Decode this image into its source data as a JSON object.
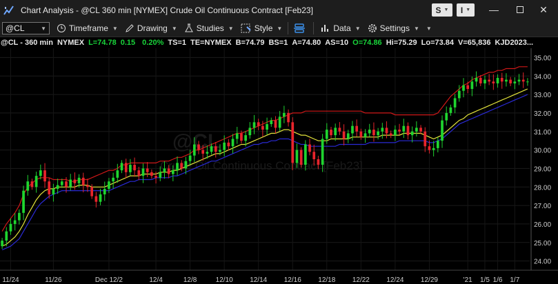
{
  "window": {
    "title": "Chart Analysis - @CL 360 min [NYMEX] Crude Oil Continuous Contract [Feb23]",
    "btn_s": "S",
    "btn_i": "I"
  },
  "toolbar": {
    "symbol": "@CL",
    "timeframe": "Timeframe",
    "drawing": "Drawing",
    "studies": "Studies",
    "style": "Style",
    "data": "Data",
    "settings": "Settings"
  },
  "quote": {
    "symbol": "@CL - 360 min",
    "exchange": "NYMEX",
    "last": "L=74.78",
    "change": "0.15",
    "change_pct": "0.20%",
    "ts": "TS=1",
    "te": "TE=NYMEX",
    "bid": "B=74.79",
    "bid_size": "BS=1",
    "ask": "A=74.80",
    "ask_size": "AS=10",
    "open": "O=74.86",
    "high": "Hi=75.29",
    "low": "Lo=73.84",
    "volume": "V=65,836",
    "extra": "KJD2023..."
  },
  "watermark": {
    "symbol": "@CL",
    "name": "Crude Oil Continuous Contract [Feb23]"
  },
  "colors": {
    "up": "#1fd52f",
    "down": "#e8242b",
    "upper_band": "#d01818",
    "middle_line": "#e6e63c",
    "lower_band": "#2a2ad6"
  },
  "chart_data": {
    "type": "candlestick",
    "ylim": [
      23.5,
      35.5
    ],
    "y_ticks": [
      "35.00",
      "34.00",
      "33.00",
      "32.00",
      "31.00",
      "30.00",
      "29.00",
      "28.00",
      "27.00",
      "26.00",
      "25.00",
      "24.00"
    ],
    "x_labels": [
      "11/24",
      "11/26",
      "Dec 12/2",
      "12/4",
      "12/8",
      "12/10",
      "12/14",
      "12/16",
      "12/18",
      "12/22",
      "12/24",
      "12/29",
      "'21",
      "1/5",
      "1/6",
      "1/7"
    ],
    "x_label_index": [
      2,
      12,
      25,
      36,
      44,
      52,
      60,
      68,
      76,
      84,
      92,
      100,
      109,
      113,
      116,
      120
    ],
    "bar_count": 124,
    "closes": [
      25.1,
      25.6,
      26.0,
      26.2,
      26.6,
      27.8,
      28.3,
      28.0,
      28.6,
      28.9,
      28.3,
      27.6,
      27.9,
      28.1,
      28.3,
      28.0,
      28.4,
      28.2,
      28.5,
      28.1,
      28.0,
      27.5,
      27.2,
      27.6,
      27.9,
      28.3,
      28.5,
      28.9,
      29.3,
      28.8,
      29.2,
      28.9,
      28.6,
      29.0,
      28.8,
      28.6,
      28.5,
      28.8,
      29.0,
      28.7,
      28.9,
      29.3,
      29.0,
      29.4,
      29.7,
      30.3,
      30.0,
      29.8,
      29.9,
      30.2,
      29.9,
      30.0,
      30.4,
      30.2,
      30.6,
      30.9,
      30.5,
      30.8,
      31.2,
      31.5,
      31.3,
      31.1,
      31.4,
      31.6,
      31.2,
      31.8,
      32.0,
      31.5,
      29.3,
      30.0,
      29.2,
      30.3,
      29.9,
      29.5,
      29.2,
      30.6,
      31.1,
      30.8,
      31.2,
      31.0,
      30.6,
      30.9,
      31.3,
      31.0,
      30.7,
      30.9,
      31.1,
      30.8,
      31.0,
      31.2,
      30.9,
      30.8,
      31.1,
      31.0,
      31.3,
      30.8,
      31.0,
      31.2,
      31.0,
      30.2,
      30.0,
      30.1,
      30.5,
      31.6,
      32.0,
      32.3,
      32.8,
      33.2,
      33.5,
      33.3,
      33.7,
      33.9,
      33.6,
      33.8,
      33.7,
      33.6,
      33.9,
      33.7,
      33.8,
      33.6,
      33.7,
      33.8,
      33.7,
      33.7
    ],
    "upper_band": [
      25.6,
      26.0,
      26.3,
      26.6,
      27.0,
      27.6,
      28.0,
      28.2,
      28.4,
      28.5,
      28.5,
      28.5,
      28.4,
      28.4,
      28.4,
      28.4,
      28.3,
      28.3,
      28.4,
      28.4,
      28.4,
      28.5,
      28.6,
      28.7,
      28.8,
      28.9,
      28.9,
      29.0,
      29.2,
      29.2,
      29.3,
      29.3,
      29.3,
      29.3,
      29.3,
      29.3,
      29.3,
      29.4,
      29.4,
      29.4,
      29.5,
      29.6,
      29.6,
      29.7,
      29.8,
      30.0,
      30.0,
      30.1,
      30.2,
      30.3,
      30.4,
      30.5,
      30.6,
      30.7,
      30.8,
      30.9,
      30.9,
      31.0,
      31.1,
      31.2,
      31.3,
      31.4,
      31.5,
      31.6,
      31.6,
      31.7,
      31.8,
      31.9,
      32.0,
      32.0,
      32.0,
      32.1,
      32.1,
      32.1,
      32.1,
      32.1,
      32.1,
      32.1,
      32.1,
      32.1,
      32.1,
      32.1,
      32.1,
      32.1,
      32.1,
      32.0,
      32.0,
      32.0,
      32.0,
      32.0,
      32.0,
      32.0,
      31.9,
      31.9,
      31.9,
      31.9,
      31.9,
      31.9,
      31.9,
      31.9,
      31.9,
      31.9,
      32.0,
      32.3,
      32.6,
      32.9,
      33.1,
      33.3,
      33.5,
      33.6,
      33.8,
      33.9,
      34.0,
      34.1,
      34.2,
      34.2,
      34.3,
      34.3,
      34.4,
      34.4,
      34.4,
      34.5,
      34.5,
      34.5
    ],
    "middle_line": [
      24.8,
      24.9,
      25.1,
      25.3,
      25.6,
      26.0,
      26.5,
      26.9,
      27.3,
      27.6,
      27.8,
      27.9,
      27.9,
      28.0,
      28.0,
      28.0,
      28.0,
      28.0,
      28.1,
      28.1,
      28.1,
      28.0,
      28.0,
      28.0,
      28.0,
      28.1,
      28.2,
      28.3,
      28.4,
      28.5,
      28.6,
      28.6,
      28.6,
      28.7,
      28.7,
      28.7,
      28.7,
      28.8,
      28.8,
      28.8,
      28.9,
      28.9,
      29.0,
      29.1,
      29.2,
      29.3,
      29.4,
      29.5,
      29.6,
      29.7,
      29.8,
      29.8,
      29.9,
      30.0,
      30.1,
      30.2,
      30.3,
      30.3,
      30.4,
      30.5,
      30.6,
      30.7,
      30.8,
      30.9,
      30.9,
      31.0,
      31.1,
      31.1,
      31.0,
      30.9,
      30.8,
      30.8,
      30.7,
      30.6,
      30.5,
      30.5,
      30.5,
      30.6,
      30.6,
      30.6,
      30.6,
      30.6,
      30.7,
      30.7,
      30.7,
      30.7,
      30.7,
      30.7,
      30.7,
      30.8,
      30.8,
      30.8,
      30.8,
      30.8,
      30.9,
      30.9,
      30.9,
      30.9,
      30.9,
      30.8,
      30.7,
      30.6,
      30.7,
      30.8,
      31.0,
      31.2,
      31.4,
      31.6,
      31.7,
      31.9,
      32.0,
      32.1,
      32.2,
      32.3,
      32.4,
      32.5,
      32.6,
      32.7,
      32.8,
      32.9,
      33.0,
      33.1,
      33.2,
      33.3
    ],
    "lower_band": [
      24.6,
      24.7,
      24.8,
      25.0,
      25.2,
      25.6,
      26.0,
      26.4,
      26.8,
      27.1,
      27.3,
      27.5,
      27.6,
      27.7,
      27.8,
      27.8,
      27.8,
      27.8,
      27.8,
      27.8,
      27.8,
      27.8,
      27.8,
      27.8,
      27.8,
      27.8,
      27.9,
      28.0,
      28.1,
      28.2,
      28.3,
      28.3,
      28.4,
      28.4,
      28.4,
      28.4,
      28.5,
      28.5,
      28.5,
      28.5,
      28.6,
      28.6,
      28.7,
      28.8,
      28.9,
      29.0,
      29.1,
      29.2,
      29.3,
      29.4,
      29.4,
      29.5,
      29.6,
      29.7,
      29.8,
      29.9,
      30.0,
      30.1,
      30.2,
      30.3,
      30.3,
      30.4,
      30.4,
      30.5,
      30.5,
      30.6,
      30.6,
      30.6,
      30.5,
      30.4,
      30.3,
      30.3,
      30.2,
      30.2,
      30.2,
      30.2,
      30.2,
      30.2,
      30.2,
      30.3,
      30.3,
      30.3,
      30.3,
      30.3,
      30.3,
      30.3,
      30.4,
      30.4,
      30.4,
      30.4,
      30.4,
      30.4,
      30.4,
      30.5,
      30.5,
      30.5,
      30.5,
      30.5,
      30.5,
      30.5,
      30.4,
      30.4,
      30.5,
      30.6,
      30.8,
      31.0,
      31.2,
      31.4,
      31.5,
      31.6,
      31.7,
      31.8,
      31.9,
      32.0,
      32.1,
      32.2,
      32.3,
      32.4,
      32.5,
      32.6,
      32.7,
      32.8,
      32.9,
      33.0
    ]
  }
}
